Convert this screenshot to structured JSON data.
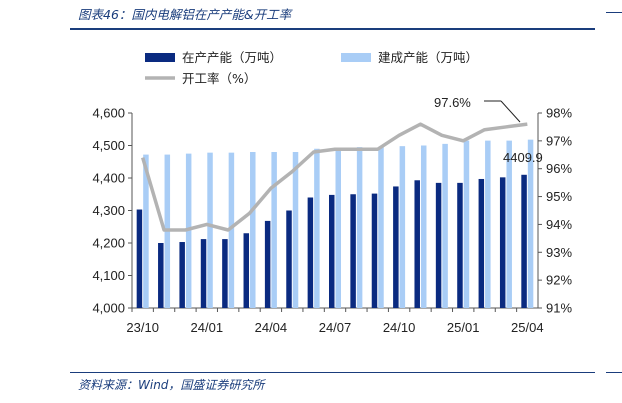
{
  "header": {
    "title": "图表46：国内电解铝在产产能&开工率"
  },
  "footer": {
    "source": "资料来源：Wind，国盛证券研究所"
  },
  "colors": {
    "in_production": "#0a2a80",
    "built": "#a9cdf6",
    "rate": "#b3b3b3",
    "accent": "#1a3d7c"
  },
  "chart_data": {
    "type": "bar",
    "x": [
      "23/10",
      "23/11",
      "23/12",
      "24/01",
      "24/02",
      "24/03",
      "24/04",
      "24/05",
      "24/06",
      "24/07",
      "24/08",
      "24/09",
      "24/10",
      "24/11",
      "24/12",
      "25/01",
      "25/02",
      "25/03",
      "25/04"
    ],
    "x_tick_labels": [
      "23/10",
      "24/01",
      "24/04",
      "24/07",
      "24/10",
      "25/01",
      "25/04"
    ],
    "series": [
      {
        "name": "在产产能（万吨）",
        "kind": "bar",
        "axis": "left",
        "values": [
          4303,
          4200,
          4203,
          4212,
          4212,
          4230,
          4268,
          4300,
          4340,
          4348,
          4350,
          4352,
          4374,
          4393,
          4385,
          4385,
          4397,
          4402,
          4409.9
        ]
      },
      {
        "name": "建成产能（万吨）",
        "kind": "bar",
        "axis": "left",
        "values": [
          4472,
          4472,
          4475,
          4478,
          4478,
          4480,
          4480,
          4480,
          4490,
          4492,
          4495,
          4496,
          4498,
          4500,
          4505,
          4515,
          4515,
          4515,
          4518
        ]
      },
      {
        "name": "开工率（%）",
        "kind": "line",
        "axis": "right",
        "values": [
          96.4,
          93.8,
          93.8,
          94.0,
          93.8,
          94.4,
          95.3,
          95.9,
          96.6,
          96.7,
          96.7,
          96.7,
          97.2,
          97.6,
          97.2,
          97.0,
          97.4,
          97.5,
          97.6
        ]
      }
    ],
    "left_axis": {
      "ylim": [
        4000,
        4600
      ],
      "ticks": [
        "4,000",
        "4,100",
        "4,200",
        "4,300",
        "4,400",
        "4,500",
        "4,600"
      ]
    },
    "right_axis": {
      "ylim": [
        91,
        98
      ],
      "ticks": [
        "91%",
        "92%",
        "93%",
        "94%",
        "95%",
        "96%",
        "97%",
        "98%"
      ]
    },
    "annotations": [
      "97.6%",
      "4409.9"
    ],
    "legend_position": "top-left",
    "grid": false
  }
}
